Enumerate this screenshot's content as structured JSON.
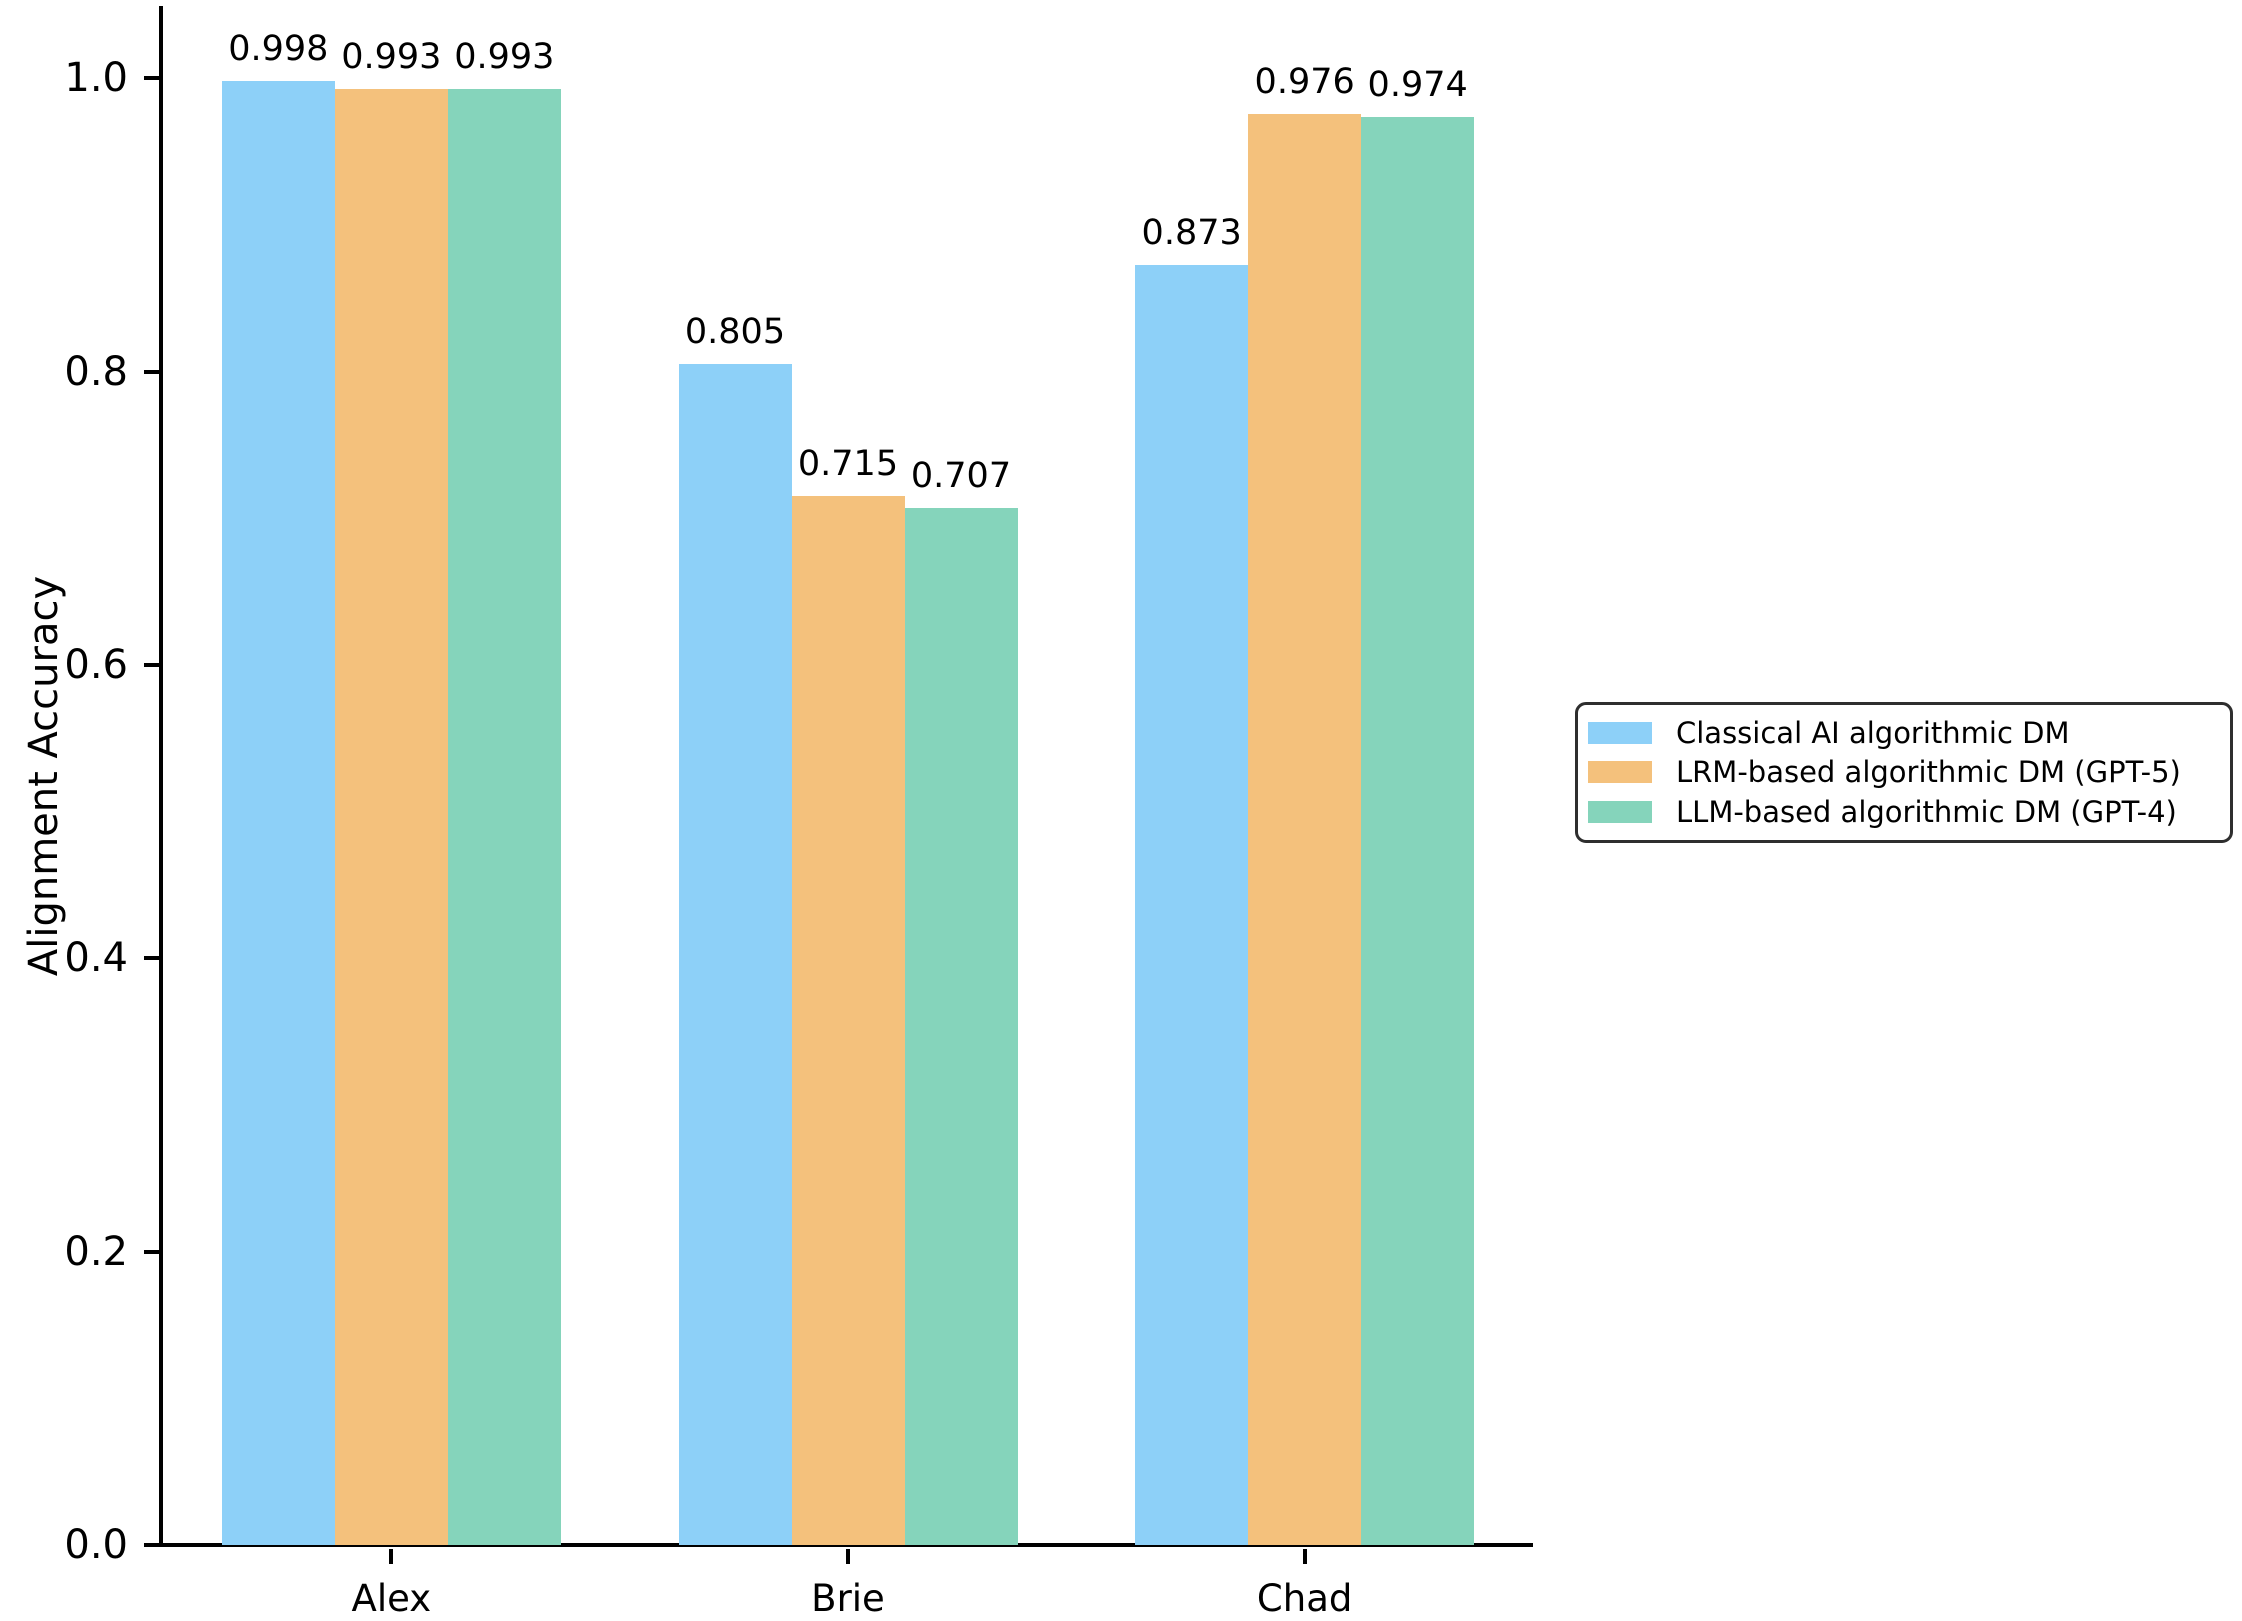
{
  "chart_data": {
    "type": "bar",
    "title": "",
    "xlabel": "",
    "ylabel": "Alignment Accuracy",
    "categories": [
      "Alex",
      "Brie",
      "Chad"
    ],
    "series": [
      {
        "name": "Classical AI algorithmic DM",
        "color": "#8DD0F8",
        "values": [
          0.998,
          0.805,
          0.873
        ]
      },
      {
        "name": "LRM-based algorithmic DM (GPT-5)",
        "color": "#F4C17C",
        "values": [
          0.993,
          0.715,
          0.976
        ]
      },
      {
        "name": "LLM-based algorithmic DM (GPT-4)",
        "color": "#85D4BB",
        "values": [
          0.993,
          0.707,
          0.974
        ]
      }
    ],
    "yticks": [
      "0.0",
      "0.2",
      "0.4",
      "0.6",
      "0.8",
      "1.0"
    ],
    "ylim": [
      0,
      1.048
    ],
    "bar_label_decimals": 3,
    "grid": false,
    "legend_position": "center-right-outside",
    "background_color": "#ffffff",
    "axis_color": "#000000",
    "text_color": "#000000"
  }
}
